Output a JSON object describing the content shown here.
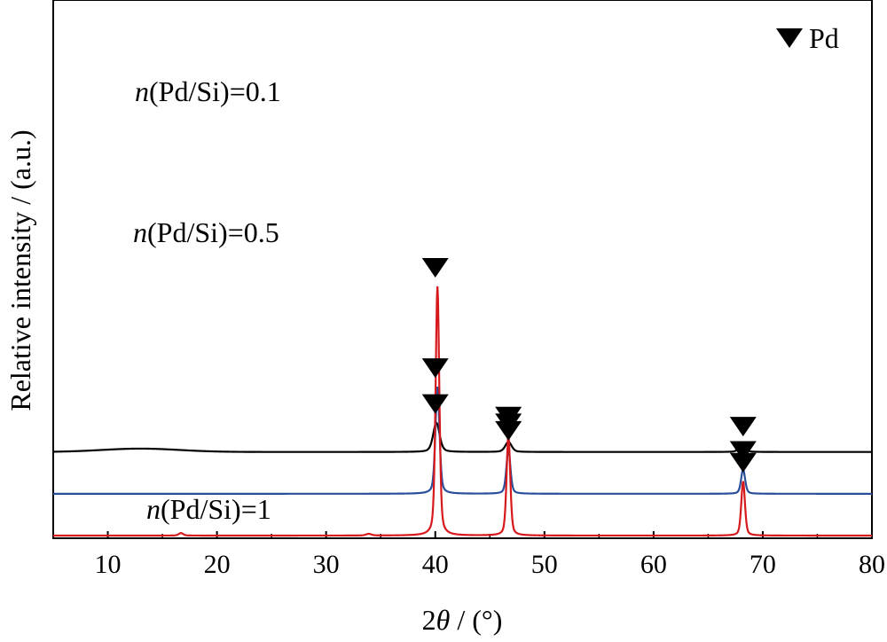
{
  "chart_data": {
    "type": "line",
    "xlabel_prefix": "2",
    "xlabel_theta": "θ",
    "xlabel_suffix": " / (°)",
    "ylabel": "Relative intensity / (a.u.)",
    "xlim": [
      5,
      80
    ],
    "x_ticks": [
      10,
      20,
      30,
      40,
      50,
      60,
      70,
      80
    ],
    "grid": false,
    "legend": {
      "marker": "down-triangle",
      "label": "Pd",
      "placement": "top-right"
    },
    "series": [
      {
        "name": "n(Pd/Si)=0.1",
        "name_italic": "n",
        "name_rest": "(Pd/Si)=0.1",
        "color": "#000000",
        "baseline": 1.0,
        "peaks": [
          {
            "x": 40.1,
            "height": 0.35,
            "width": 0.35
          },
          {
            "x": 46.7,
            "height": 0.12,
            "width": 0.35
          },
          {
            "x": 68.1,
            "height": 0.08,
            "width": 0.35
          }
        ],
        "hump": {
          "x": 13,
          "height": 0.04,
          "width": 5
        },
        "markers_x": [
          40.0,
          46.7,
          68.2
        ]
      },
      {
        "name": "n(Pd/Si)=0.5",
        "name_italic": "n",
        "name_rest": "(Pd/Si)=0.5",
        "color": "#2a4f9a",
        "baseline": 0.5,
        "peaks": [
          {
            "x": 40.2,
            "height": 1.28,
            "width": 0.22
          },
          {
            "x": 46.7,
            "height": 0.53,
            "width": 0.22
          },
          {
            "x": 68.2,
            "height": 0.29,
            "width": 0.22
          }
        ],
        "markers_x": [
          40.0,
          46.7,
          68.2
        ]
      },
      {
        "name": "n(Pd/Si)=1",
        "name_italic": "n",
        "name_rest": "(Pd/Si)=1",
        "color": "#d7191c",
        "baseline": 0.0,
        "peaks": [
          {
            "x": 40.2,
            "height": 2.98,
            "width": 0.2
          },
          {
            "x": 46.7,
            "height": 1.2,
            "width": 0.2
          },
          {
            "x": 68.2,
            "height": 0.65,
            "width": 0.2
          },
          {
            "x": 16.7,
            "height": 0.03,
            "width": 0.25
          },
          {
            "x": 33.9,
            "height": 0.02,
            "width": 0.3
          }
        ],
        "markers_x": [
          40.0,
          46.7,
          68.2
        ]
      }
    ]
  }
}
